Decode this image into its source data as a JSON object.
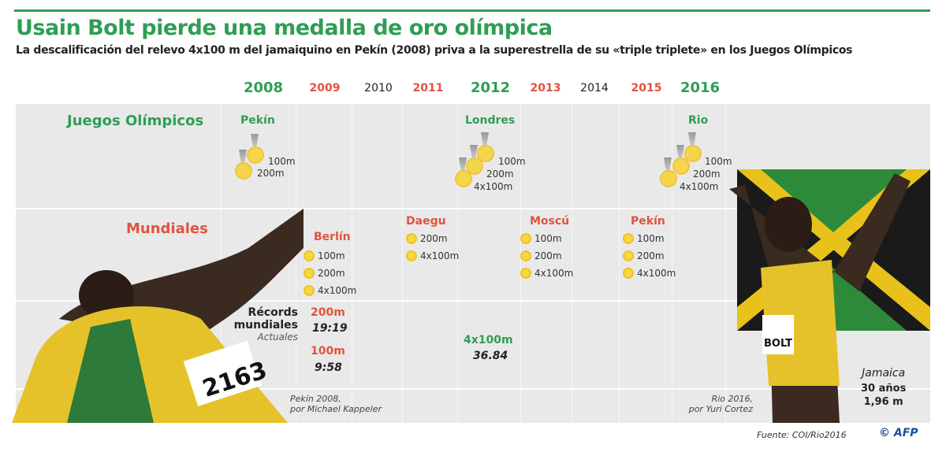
{
  "title": "Usain Bolt pierde una medalla de oro olímpica",
  "subtitle": "La descalificación del relevo 4x100 m del jamaiquino en Pekín (2008) priva a la superestrella de su «triple triplete» en los Juegos Olímpicos",
  "years": [
    "2008",
    "2009",
    "2010",
    "2011",
    "2012",
    "2013",
    "2014",
    "2015",
    "2016"
  ],
  "rows": {
    "olympics": "Juegos Olímpicos",
    "worlds": "Mundiales",
    "records": "Récords",
    "records2": "mundiales",
    "records3": "Actuales"
  },
  "olympics": [
    {
      "city": "Pekín",
      "events": [
        "100m",
        "200m"
      ]
    },
    {
      "city": "Londres",
      "events": [
        "100m",
        "200m",
        "4x100m"
      ]
    },
    {
      "city": "Rio",
      "events": [
        "100m",
        "200m",
        "4x100m"
      ]
    }
  ],
  "worlds": [
    {
      "city": "Berlín",
      "events": [
        "100m",
        "200m",
        "4x100m"
      ]
    },
    {
      "city": "Daegu",
      "events": [
        "200m",
        "4x100m"
      ]
    },
    {
      "city": "Moscú",
      "events": [
        "100m",
        "200m",
        "4x100m"
      ]
    },
    {
      "city": "Pekín",
      "events": [
        "100m",
        "200m",
        "4x100m"
      ]
    }
  ],
  "records": [
    {
      "event": "200m",
      "time": "19:19"
    },
    {
      "event": "100m",
      "time": "9:58"
    },
    {
      "event": "4x100m",
      "time": "36.84"
    }
  ],
  "captions": {
    "left1": "Pekín 2008,",
    "left2": "por Michael Kappeler",
    "right1": "Rio 2016,",
    "right2": "por Yuri Cortez"
  },
  "profile": {
    "country": "Jamaica",
    "age": "30 años",
    "height": "1,96 m"
  },
  "bib": "2163",
  "shirt": "BOLT",
  "footer": {
    "source": "Fuente: COI/Rio2016",
    "logo": "© AFP"
  },
  "colors": {
    "green": "#2e9e55",
    "red": "#e0533f",
    "gold": "#f5d64a"
  }
}
